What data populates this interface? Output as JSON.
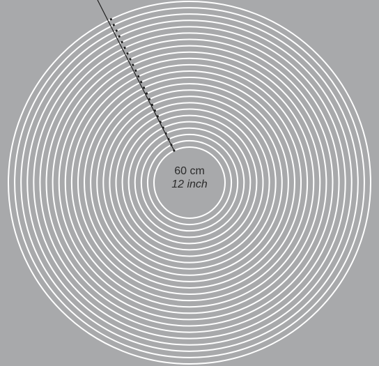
{
  "background_color": "#a8a9ab",
  "ring_color": "#ffffff",
  "marker_color": "#1f1f1f",
  "ring_count": 24,
  "center_label": {
    "primary": "60 cm",
    "secondary": "12 inch"
  }
}
